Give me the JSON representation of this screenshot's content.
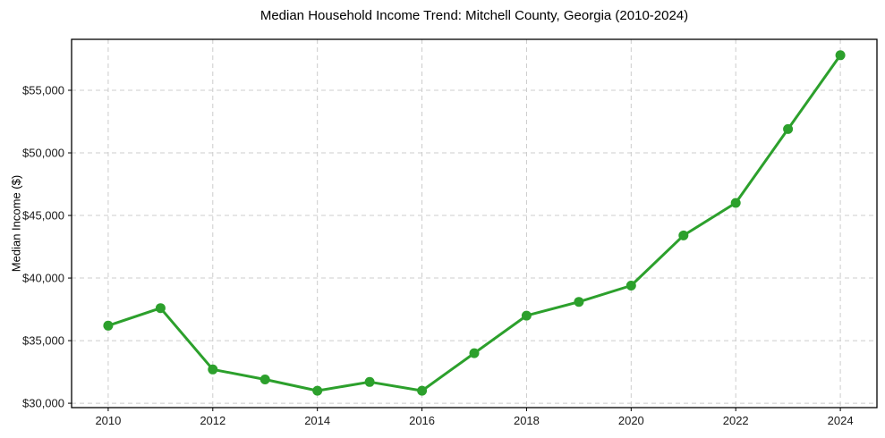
{
  "chart_data": {
    "type": "line",
    "title": "Median Household Income Trend: Mitchell County, Georgia (2010-2024)",
    "xlabel": "",
    "ylabel": "Median Income ($)",
    "series_name": "Median household income",
    "x": [
      2010,
      2011,
      2012,
      2013,
      2014,
      2015,
      2016,
      2017,
      2018,
      2019,
      2020,
      2021,
      2022,
      2023,
      2024
    ],
    "values": [
      36200,
      37600,
      32700,
      31900,
      31000,
      31700,
      31000,
      34000,
      37000,
      38100,
      39400,
      43400,
      46000,
      51900,
      57800
    ],
    "xlim": [
      2009.3,
      2024.7
    ],
    "ylim": [
      29650,
      59070
    ],
    "xticks": [
      {
        "value": 2010,
        "label": "2010"
      },
      {
        "value": 2012,
        "label": "2012"
      },
      {
        "value": 2014,
        "label": "2014"
      },
      {
        "value": 2016,
        "label": "2016"
      },
      {
        "value": 2018,
        "label": "2018"
      },
      {
        "value": 2020,
        "label": "2020"
      },
      {
        "value": 2022,
        "label": "2022"
      },
      {
        "value": 2024,
        "label": "2024"
      }
    ],
    "yticks": [
      {
        "value": 30000,
        "label": "$30,000"
      },
      {
        "value": 35000,
        "label": "$35,000"
      },
      {
        "value": 40000,
        "label": "$40,000"
      },
      {
        "value": 45000,
        "label": "$45,000"
      },
      {
        "value": 50000,
        "label": "$50,000"
      },
      {
        "value": 55000,
        "label": "$55,000"
      }
    ],
    "grid": true,
    "grid_style": "dashed",
    "legend": "none",
    "marker": "circle",
    "line_color": "#2ca02c",
    "grid_color": "#cccccc",
    "axis_color": "#000000",
    "text_color": "#1a1a1a",
    "background_color": "#ffffff"
  }
}
